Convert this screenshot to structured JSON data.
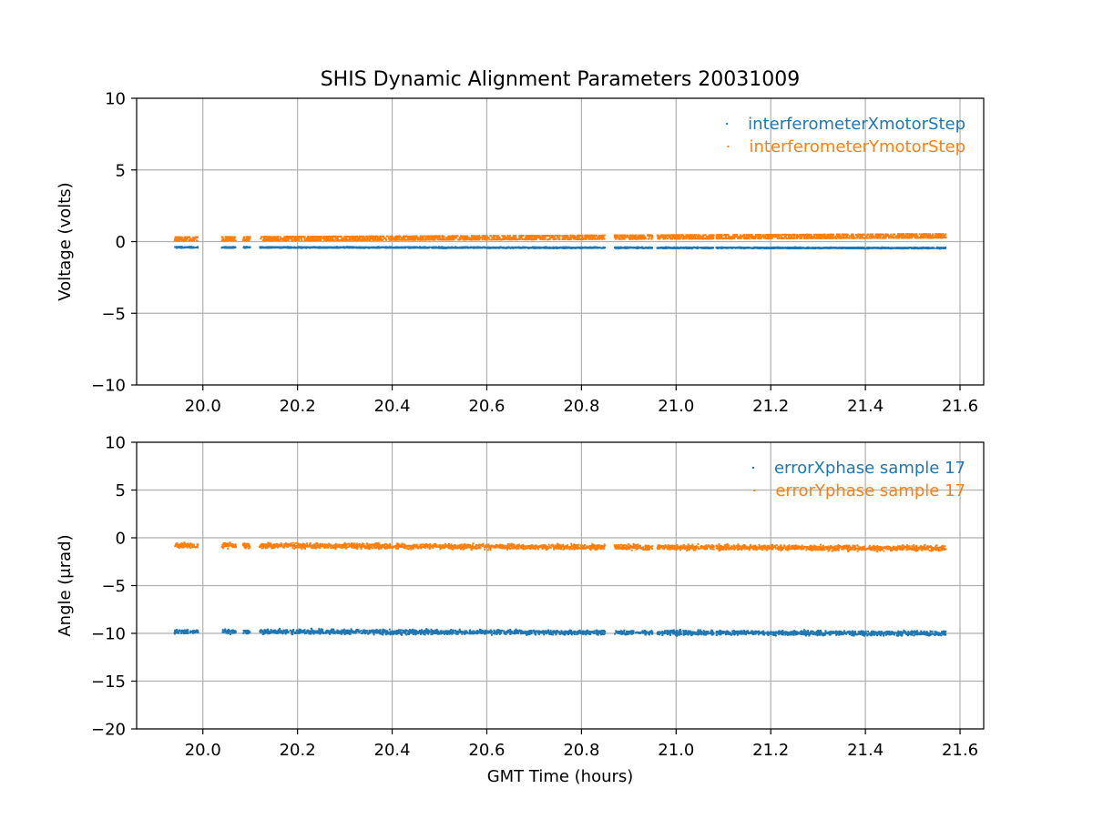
{
  "chart_data": [
    {
      "type": "scatter",
      "title": "SHIS Dynamic Alignment Parameters 20031009",
      "xlabel": "",
      "ylabel": "Voltage (volts)",
      "xlim": [
        19.86,
        21.65
      ],
      "ylim": [
        -10,
        10
      ],
      "xticks": [
        20.0,
        20.2,
        20.4,
        20.6,
        20.8,
        21.0,
        21.2,
        21.4,
        21.6
      ],
      "xtick_labels": [
        "20.0",
        "20.2",
        "20.4",
        "20.6",
        "20.8",
        "21.0",
        "21.2",
        "21.4",
        "21.6"
      ],
      "yticks": [
        -10,
        -5,
        0,
        5,
        10
      ],
      "ytick_labels": [
        "−10",
        "−5",
        "0",
        "5",
        "10"
      ],
      "grid": true,
      "legend": "top-right",
      "x_segments": [
        [
          19.94,
          19.99
        ],
        [
          20.04,
          20.07
        ],
        [
          20.085,
          20.1
        ],
        [
          20.12,
          20.85
        ],
        [
          20.87,
          20.95
        ],
        [
          20.96,
          21.08
        ],
        [
          21.085,
          21.57
        ]
      ],
      "series": [
        {
          "name": "interferometerXmotorStep",
          "color": "#1f77b4",
          "start": -0.4,
          "end": -0.45,
          "spread": 0.06,
          "bands": 1
        },
        {
          "name": "interferometerYmotorStep",
          "color": "#ff7f0e",
          "start": 0.18,
          "end": 0.4,
          "spread": 0.1,
          "bands": 3
        }
      ]
    },
    {
      "type": "scatter",
      "title": "",
      "xlabel": "GMT Time (hours)",
      "ylabel": "Angle (μrad)",
      "xlim": [
        19.86,
        21.65
      ],
      "ylim": [
        -20,
        10
      ],
      "xticks": [
        20.0,
        20.2,
        20.4,
        20.6,
        20.8,
        21.0,
        21.2,
        21.4,
        21.6
      ],
      "xtick_labels": [
        "20.0",
        "20.2",
        "20.4",
        "20.6",
        "20.8",
        "21.0",
        "21.2",
        "21.4",
        "21.6"
      ],
      "yticks": [
        -20,
        -15,
        -10,
        -5,
        0,
        5,
        10
      ],
      "ytick_labels": [
        "−20",
        "−15",
        "−10",
        "−5",
        "0",
        "5",
        "10"
      ],
      "grid": true,
      "legend": "top-right",
      "x_segments": [
        [
          19.94,
          19.99
        ],
        [
          20.04,
          20.07
        ],
        [
          20.085,
          20.1
        ],
        [
          20.12,
          20.85
        ],
        [
          20.87,
          20.95
        ],
        [
          20.96,
          21.08
        ],
        [
          21.085,
          21.57
        ]
      ],
      "series": [
        {
          "name": "errorXphase sample 17",
          "color": "#1f77b4",
          "start": -9.8,
          "end": -10.0,
          "spread": 0.35,
          "bands": 1
        },
        {
          "name": "errorYphase sample 17",
          "color": "#ff7f0e",
          "start": -0.8,
          "end": -1.1,
          "spread": 0.4,
          "bands": 1
        }
      ]
    }
  ]
}
